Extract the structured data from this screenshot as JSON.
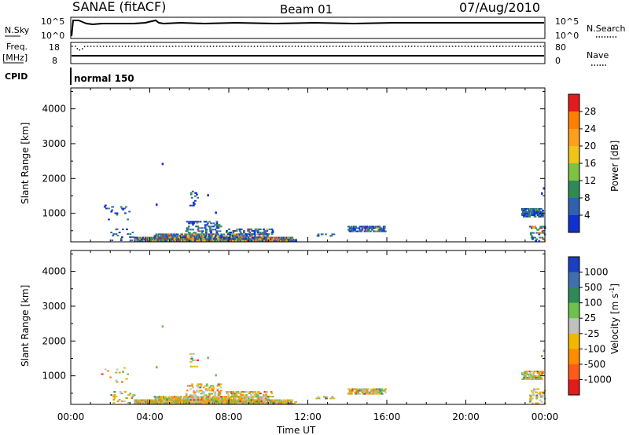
{
  "header": {
    "station": "SANAE (fitACF)",
    "beam": "Beam 01",
    "date": "07/Aug/2010"
  },
  "noise_panel": {
    "left_label": "N.Sky",
    "right_label": "N.Search",
    "left_ticks": [
      "10^5",
      "10^0"
    ],
    "right_ticks": [
      "10^5",
      "10^0"
    ]
  },
  "freq_panel": {
    "left_label": "Freq.",
    "left_unit": "[MHz]",
    "right_label": "Nave",
    "left_ticks": [
      "18",
      "8"
    ],
    "right_ticks": [
      "80",
      "0"
    ]
  },
  "cpid": {
    "label": "CPID",
    "value": "normal 150"
  },
  "x_axis": {
    "label": "Time UT",
    "ticks": [
      "00:00",
      "04:00",
      "08:00",
      "12:00",
      "16:00",
      "20:00",
      "00:00"
    ]
  },
  "chart_data": [
    {
      "type": "heatmap",
      "name": "power",
      "ylabel": "Slant Range [km]",
      "yticks": [
        1000,
        2000,
        3000,
        4000
      ],
      "ylim": [
        180,
        4600
      ],
      "xlim_hours": [
        0,
        24
      ],
      "colorbar": {
        "label": "Power [dB]",
        "tick_labels": [
          "28",
          "24",
          "20",
          "16",
          "12",
          "8",
          "4"
        ],
        "colors": [
          "#e41a1c",
          "#ff7f00",
          "#ff9f1c",
          "#f0c419",
          "#7dc242",
          "#2e8b57",
          "#3060b0",
          "#1030d0"
        ]
      }
    },
    {
      "type": "heatmap",
      "name": "velocity",
      "ylabel": "Slant Range [km]",
      "yticks": [
        1000,
        2000,
        3000,
        4000
      ],
      "ylim": [
        180,
        4600
      ],
      "xlim_hours": [
        0,
        24
      ],
      "colorbar": {
        "label": "Velocity [m s^-1]",
        "tick_labels": [
          "1000",
          "500",
          "100",
          "25",
          "-25",
          "-100",
          "-500",
          "-1000"
        ],
        "colors": [
          "#1a3fc0",
          "#3f6fb0",
          "#2e8b57",
          "#6cc24a",
          "#c0c0c0",
          "#f0b800",
          "#ff8c00",
          "#ff5a1a",
          "#e41a1c"
        ]
      }
    }
  ]
}
